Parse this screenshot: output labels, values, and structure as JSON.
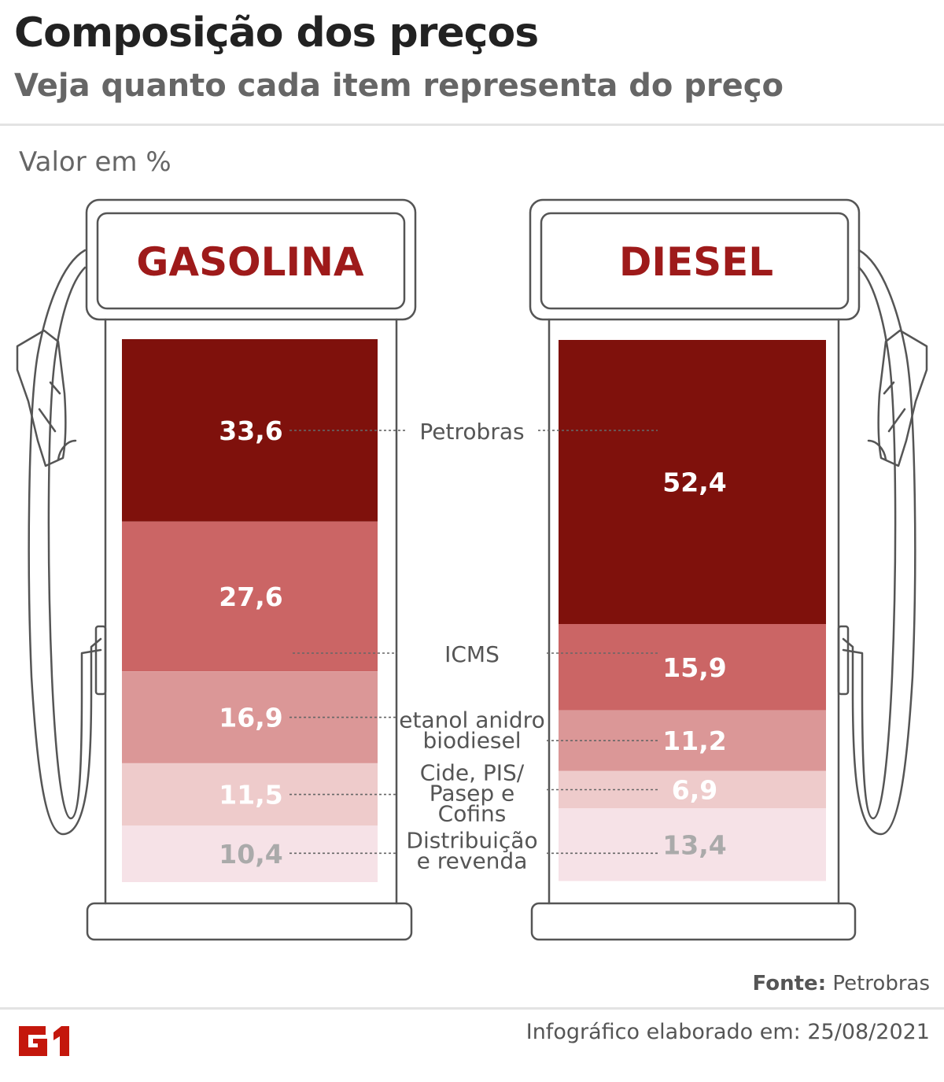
{
  "header": {
    "title": "Composição dos preços",
    "subtitle": "Veja quanto cada item representa do preço"
  },
  "unit_label": "Valor em %",
  "source": {
    "label": "Fonte:",
    "value": "Petrobras"
  },
  "footer": {
    "text": "Infográfico elaborado em: 25/08/2021"
  },
  "logo": {
    "text": "G1",
    "color": "#c4170c"
  },
  "colors": {
    "petrobras": "#7f110c",
    "icms": "#cb6565",
    "anidro": "#db9797",
    "cide": "#eecbcb",
    "distrib": "#f6e2e7",
    "title_red": "#9e1a1a",
    "label_white": "#ffffff",
    "label_gray": "#aaaaaa"
  },
  "chart_data": {
    "type": "bar",
    "stacked": true,
    "unit": "%",
    "categories": [
      "GASOLINA",
      "DIESEL"
    ],
    "series": [
      {
        "name": "Petrobras",
        "values": [
          33.6,
          52.4
        ],
        "labels": [
          "33,6",
          "52,4"
        ],
        "color_key": "petrobras"
      },
      {
        "name": "ICMS",
        "values": [
          27.6,
          15.9
        ],
        "labels": [
          "27,6",
          "15,9"
        ],
        "color_key": "icms"
      },
      {
        "name": "etanol anidro / biodiesel",
        "label_lines": [
          "etanol anidro",
          "biodiesel"
        ],
        "values": [
          16.9,
          11.2
        ],
        "labels": [
          "16,9",
          "11,2"
        ],
        "color_key": "anidro"
      },
      {
        "name": "Cide, PIS/ Pasep e Cofins",
        "label_lines": [
          "Cide, PIS/",
          "Pasep e",
          "Cofins"
        ],
        "values": [
          11.5,
          6.9
        ],
        "labels": [
          "11,5",
          "6,9"
        ],
        "color_key": "cide"
      },
      {
        "name": "Distribuição e revenda",
        "label_lines": [
          "Distribuição",
          "e revenda"
        ],
        "values": [
          10.4,
          13.4
        ],
        "labels": [
          "10,4",
          "13,4"
        ],
        "color_key": "distrib"
      }
    ]
  }
}
